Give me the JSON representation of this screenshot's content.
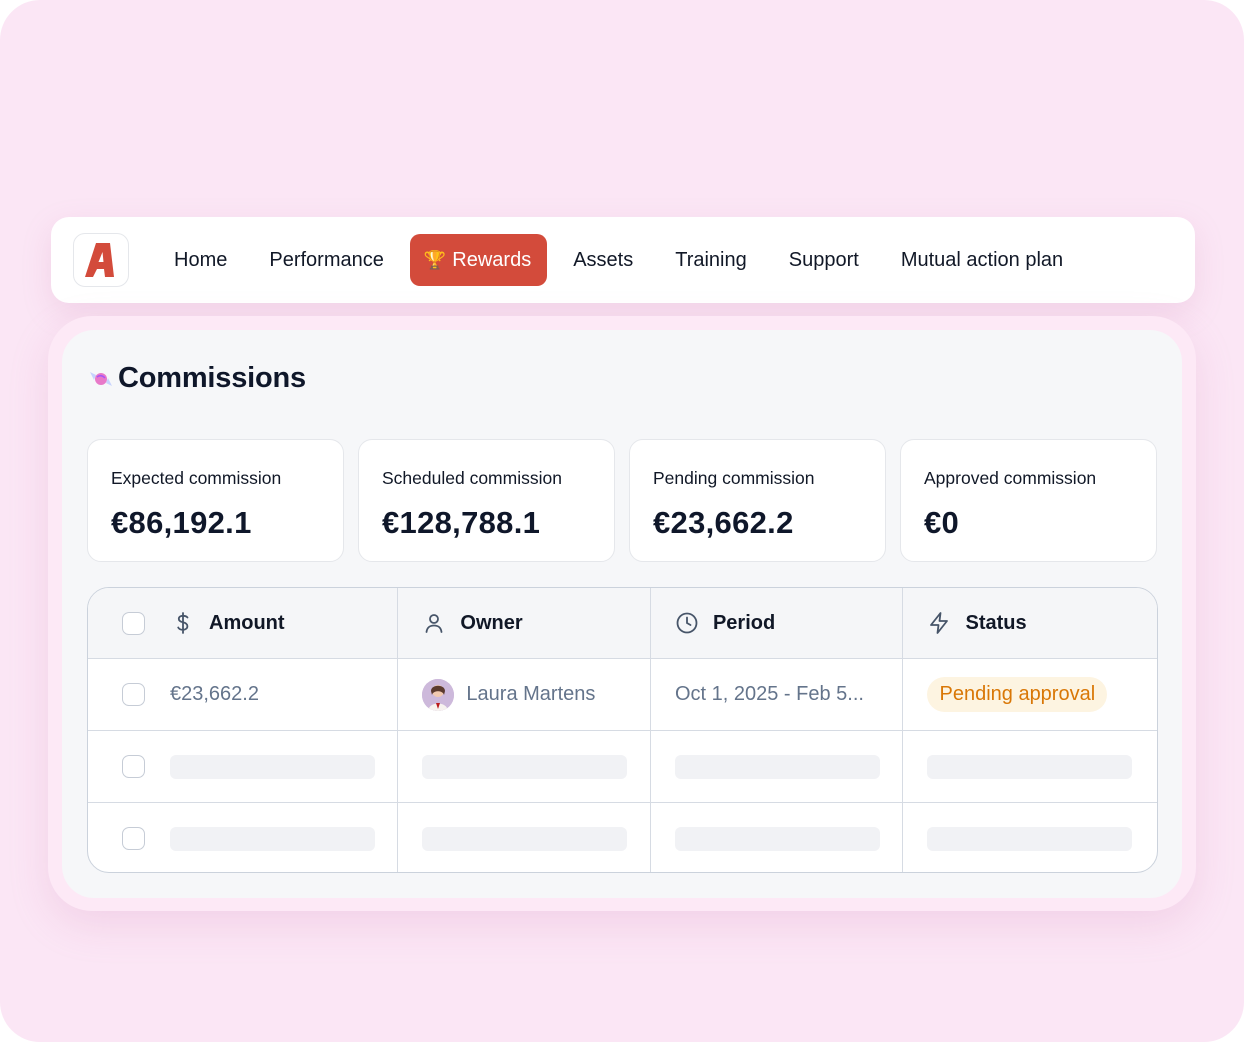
{
  "nav": {
    "items": [
      {
        "label": "Home"
      },
      {
        "label": "Performance"
      },
      {
        "label": "Rewards",
        "active": true,
        "icon": "trophy-icon"
      },
      {
        "label": "Assets"
      },
      {
        "label": "Training"
      },
      {
        "label": "Support"
      },
      {
        "label": "Mutual action plan"
      }
    ]
  },
  "page": {
    "title": "Commissions",
    "title_icon": "candy-icon"
  },
  "cards": [
    {
      "label": "Expected commission",
      "value": "€86,192.1"
    },
    {
      "label": "Scheduled commission",
      "value": "€128,788.1"
    },
    {
      "label": "Pending commission",
      "value": "€23,662.2"
    },
    {
      "label": "Approved commission",
      "value": "€0"
    }
  ],
  "table": {
    "columns": [
      {
        "label": "Amount",
        "icon": "dollar-icon"
      },
      {
        "label": "Owner",
        "icon": "user-icon"
      },
      {
        "label": "Period",
        "icon": "clock-icon"
      },
      {
        "label": "Status",
        "icon": "lightning-icon"
      }
    ],
    "rows": [
      {
        "amount": "€23,662.2",
        "owner": "Laura Martens",
        "period": "Oct 1, 2025 - Feb 5...",
        "status": "Pending approval"
      }
    ]
  },
  "colors": {
    "accent": "#d34b3b",
    "background": "#fbe6f5",
    "status_pending_bg": "#fdf4e1",
    "status_pending_text": "#d97706"
  }
}
